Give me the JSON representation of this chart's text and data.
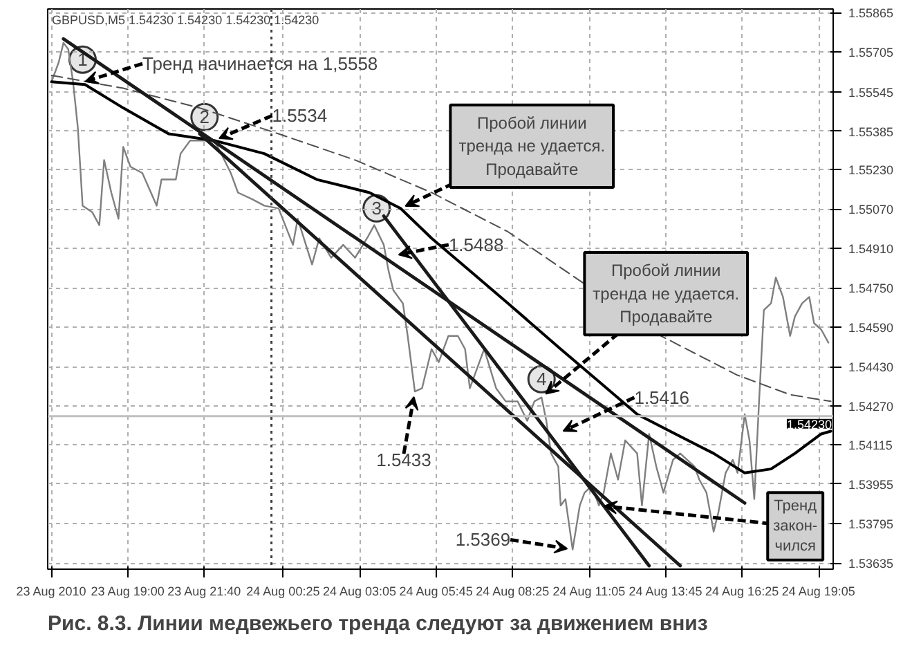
{
  "chart_data": {
    "type": "line",
    "title": "Рис. 8.3. Линии медвежьего тренда следуют за движением вниз",
    "series": [
      {
        "color": "#7f7f7f",
        "x": [
          "2010-08-23T16:20",
          "2010-08-23T16:35",
          "2010-08-23T16:45",
          "2010-08-23T16:55",
          "2010-08-23T17:05",
          "2010-08-23T17:15",
          "2010-08-23T17:25",
          "2010-08-23T17:45",
          "2010-08-23T18:00",
          "2010-08-23T18:10",
          "2010-08-23T18:25",
          "2010-08-23T18:40",
          "2010-08-23T18:50",
          "2010-08-23T19:05",
          "2010-08-23T19:30",
          "2010-08-23T20:00",
          "2010-08-23T20:10",
          "2010-08-23T20:40",
          "2010-08-23T20:50",
          "2010-08-23T21:10",
          "2010-08-23T21:30",
          "2010-08-23T22:00",
          "2010-08-23T22:15",
          "2010-08-23T22:35",
          "2010-08-23T22:50",
          "2010-08-23T23:20",
          "2010-08-23T23:45",
          "2010-08-24T00:15",
          "2010-08-24T00:45",
          "2010-08-24T00:55",
          "2010-08-24T01:25",
          "2010-08-24T01:40",
          "2010-08-24T02:05",
          "2010-08-24T02:30",
          "2010-08-24T02:55",
          "2010-08-24T03:20",
          "2010-08-24T03:35",
          "2010-08-24T03:55",
          "2010-08-24T04:05",
          "2010-08-24T04:15",
          "2010-08-24T04:35",
          "2010-08-24T04:45",
          "2010-08-24T05:00",
          "2010-08-24T05:15",
          "2010-08-24T05:35",
          "2010-08-24T05:50",
          "2010-08-24T06:10",
          "2010-08-24T06:30",
          "2010-08-24T06:45",
          "2010-08-24T06:55",
          "2010-08-24T07:25",
          "2010-08-24T07:50",
          "2010-08-24T08:10",
          "2010-08-24T08:35",
          "2010-08-24T08:55",
          "2010-08-24T09:10",
          "2010-08-24T09:25",
          "2010-08-24T09:35",
          "2010-08-24T09:45",
          "2010-08-24T10:00",
          "2010-08-24T10:05",
          "2010-08-24T10:15",
          "2010-08-24T10:30",
          "2010-08-24T10:45",
          "2010-08-24T10:55",
          "2010-08-24T11:10",
          "2010-08-24T11:25",
          "2010-08-24T11:35",
          "2010-08-24T11:50",
          "2010-08-24T12:05",
          "2010-08-24T12:20",
          "2010-08-24T12:45",
          "2010-08-24T12:55",
          "2010-08-24T13:10",
          "2010-08-24T13:25",
          "2010-08-24T13:40",
          "2010-08-24T14:00",
          "2010-08-24T14:15",
          "2010-08-24T14:45",
          "2010-08-24T14:55",
          "2010-08-24T15:10",
          "2010-08-24T15:25",
          "2010-08-24T15:35",
          "2010-08-24T15:50",
          "2010-08-24T16:05",
          "2010-08-24T16:15",
          "2010-08-24T16:30",
          "2010-08-24T16:40",
          "2010-08-24T16:50",
          "2010-08-24T17:00",
          "2010-08-24T17:10",
          "2010-08-24T17:25",
          "2010-08-24T17:35",
          "2010-08-24T17:50",
          "2010-08-24T18:05",
          "2010-08-24T18:15",
          "2010-08-24T18:30",
          "2010-08-24T18:45",
          "2010-08-24T18:55",
          "2010-08-24T19:10",
          "2010-08-24T19:25"
        ],
        "values": [
          1.55585,
          1.55664,
          1.55743,
          1.55717,
          1.55585,
          1.554,
          1.55083,
          1.55057,
          1.55004,
          1.55268,
          1.55136,
          1.5503,
          1.55321,
          1.55241,
          1.55215,
          1.55083,
          1.55189,
          1.55189,
          1.55294,
          1.55347,
          1.55347,
          1.55347,
          1.55294,
          1.55215,
          1.55136,
          1.55109,
          1.55083,
          1.55072,
          1.54924,
          1.5503,
          1.54845,
          1.54951,
          1.54872,
          1.54924,
          1.54872,
          1.54951,
          1.55004,
          1.54924,
          1.54819,
          1.5474,
          1.54687,
          1.54555,
          1.5433,
          1.54343,
          1.54502,
          1.54449,
          1.54555,
          1.54555,
          1.54502,
          1.54343,
          1.54502,
          1.54343,
          1.5429,
          1.5429,
          1.54211,
          1.5429,
          1.54306,
          1.54211,
          1.54079,
          1.54026,
          1.53868,
          1.53894,
          1.5369,
          1.53868,
          1.5392,
          1.53947,
          1.53868,
          1.5392,
          1.54079,
          1.53973,
          1.54132,
          1.54079,
          1.53868,
          1.54158,
          1.54026,
          1.5392,
          1.54053,
          1.54079,
          1.54026,
          1.53973,
          1.5392,
          1.53762,
          1.53841,
          1.54,
          1.54053,
          1.54,
          1.54238,
          1.54132,
          1.53894,
          1.5429,
          1.5466,
          1.54687,
          1.54792,
          1.54713,
          1.54555,
          1.54634,
          1.54687,
          1.54713,
          1.54607,
          1.54581,
          1.54528
        ]
      },
      {
        "color": "#000000",
        "x": [
          "2010-08-23T16:20",
          "2010-08-23T17:30",
          "2010-08-23T18:50",
          "2010-08-23T20:25",
          "2010-08-23T22:00",
          "2010-08-23T23:45",
          "2010-08-24T01:35",
          "2010-08-24T03:25",
          "2010-08-24T04:30",
          "2010-08-24T05:35",
          "2010-08-24T06:55",
          "2010-08-24T08:15",
          "2010-08-24T10:05",
          "2010-08-24T11:25",
          "2010-08-24T12:45",
          "2010-08-24T14:05",
          "2010-08-24T15:25",
          "2010-08-24T16:30",
          "2010-08-24T17:25",
          "2010-08-24T18:15",
          "2010-08-24T19:10",
          "2010-08-24T19:30"
        ],
        "values": [
          1.55585,
          1.55574,
          1.55479,
          1.55374,
          1.55347,
          1.55294,
          1.55189,
          1.55136,
          1.55072,
          1.54951,
          1.54819,
          1.54687,
          1.54502,
          1.5437,
          1.54238,
          1.54158,
          1.54079,
          1.54,
          1.54016,
          1.54079,
          1.54158,
          1.54169
        ]
      },
      {
        "color": "#505050",
        "line_style": "dashed",
        "x": [
          "2010-08-23T16:20",
          "2010-08-23T18:50",
          "2010-08-23T21:30",
          "2010-08-24T00:15",
          "2010-08-24T02:55",
          "2010-08-24T05:35",
          "2010-08-24T08:15",
          "2010-08-24T10:55",
          "2010-08-24T13:35",
          "2010-08-24T16:15",
          "2010-08-24T18:05",
          "2010-08-24T19:30"
        ],
        "values": [
          1.55611,
          1.55559,
          1.55479,
          1.55374,
          1.55268,
          1.55136,
          1.54977,
          1.54766,
          1.54555,
          1.54396,
          1.54317,
          1.5429
        ]
      },
      {
        "color": "#1a1a1a",
        "x": [
          "2010-08-23T16:45",
          "2010-08-24T16:30"
        ],
        "values": [
          1.55759,
          1.53878
        ]
      },
      {
        "color": "#1a1a1a",
        "x": [
          "2010-08-23T21:30",
          "2010-08-24T14:15"
        ],
        "values": [
          1.55374,
          1.53624
        ]
      },
      {
        "color": "#1a1a1a",
        "x": [
          "2010-08-24T03:55",
          "2010-08-24T13:10"
        ],
        "values": [
          1.55041,
          1.53624
        ]
      }
    ],
    "xlim": [
      "2010-08-23T16:12",
      "2010-08-24T19:35"
    ],
    "ylim": [
      1.5361,
      1.5588
    ],
    "xticks": [
      {
        "value": "2010-08-23T16:20",
        "label": "23 Aug 2010"
      },
      {
        "value": "2010-08-23T19:00",
        "label": "23 Aug 19:00"
      },
      {
        "value": "2010-08-23T21:40",
        "label": "23 Aug 21:40"
      },
      {
        "value": "2010-08-24T00:25",
        "label": "24 Aug 00:25"
      },
      {
        "value": "2010-08-24T03:05",
        "label": "24 Aug 03:05"
      },
      {
        "value": "2010-08-24T05:45",
        "label": "24 Aug 05:45"
      },
      {
        "value": "2010-08-24T08:25",
        "label": "24 Aug 08:25"
      },
      {
        "value": "2010-08-24T11:05",
        "label": "24 Aug 11:05"
      },
      {
        "value": "2010-08-24T13:45",
        "label": "24 Aug 13:45"
      },
      {
        "value": "2010-08-24T16:25",
        "label": "24 Aug 16:25"
      },
      {
        "value": "2010-08-24T19:05",
        "label": "24 Aug 19:05"
      }
    ],
    "yticks": [
      {
        "value": 1.53635,
        "label": "1.53635"
      },
      {
        "value": 1.53795,
        "label": "1.53795"
      },
      {
        "value": 1.53955,
        "label": "1.53955"
      },
      {
        "value": 1.54115,
        "label": "1.54115"
      },
      {
        "value": 1.5427,
        "label": "1.54270"
      },
      {
        "value": 1.5443,
        "label": "1.54430"
      },
      {
        "value": 1.5459,
        "label": "1.54590"
      },
      {
        "value": 1.5475,
        "label": "1.54750"
      },
      {
        "value": 1.5491,
        "label": "1.54910"
      },
      {
        "value": 1.5507,
        "label": "1.55070"
      },
      {
        "value": 1.5523,
        "label": "1.55230"
      },
      {
        "value": 1.55385,
        "label": "1.55385"
      },
      {
        "value": 1.55545,
        "label": "1.55545"
      },
      {
        "value": 1.55705,
        "label": "1.55705"
      },
      {
        "value": 1.55865,
        "label": "1.55865"
      }
    ],
    "ref_lines": [
      {
        "axis": "y",
        "value": 1.5423,
        "label": "1.54230",
        "color": "#c0c0c0"
      },
      {
        "axis": "x",
        "value": "2010-08-24T00:00",
        "color": "#404040",
        "line_style": "dotted"
      }
    ],
    "grid": true,
    "annotations": [
      "GBPUSD,M5 1.54230 1.54230 1.54230 1.54230",
      {
        "text": "1",
        "x": "2010-08-23T17:25",
        "y": 1.55675
      },
      {
        "text": "2",
        "x": "2010-08-23T21:40",
        "y": 1.55442
      },
      {
        "text": "3",
        "x": "2010-08-24T03:40",
        "y": 1.55072
      },
      {
        "text": "4",
        "x": "2010-08-24T09:25",
        "y": 1.5438
      },
      {
        "text": "Тренд начинается на 1,5558",
        "x": "2010-08-23T17:20",
        "y": 1.5558
      },
      {
        "text": "1.5534",
        "x": "2010-08-23T22:00",
        "y": 1.55347
      },
      {
        "text": "1.5488",
        "x": "2010-08-24T04:15",
        "y": 1.5488
      },
      {
        "text": "1.5416",
        "x": "2010-08-24T10:00",
        "y": 1.5416
      },
      {
        "text": "1.5433",
        "x": "2010-08-24T05:00",
        "y": 1.5433
      },
      {
        "text": "1.5369",
        "x": "2010-08-24T10:30",
        "y": 1.5369
      },
      {
        "text": "Пробой линии\nтренда не удается.\nПродавайте",
        "x": "2010-08-24T04:30",
        "y": 1.55072
      },
      {
        "text": "Пробой линии\nтренда не удается.\nПродавайте",
        "x": "2010-08-24T09:25",
        "y": 1.54306
      },
      {
        "text": "Тренд\nзакон-\nчился",
        "x": "2010-08-24T11:25",
        "y": 1.53868
      }
    ]
  }
}
